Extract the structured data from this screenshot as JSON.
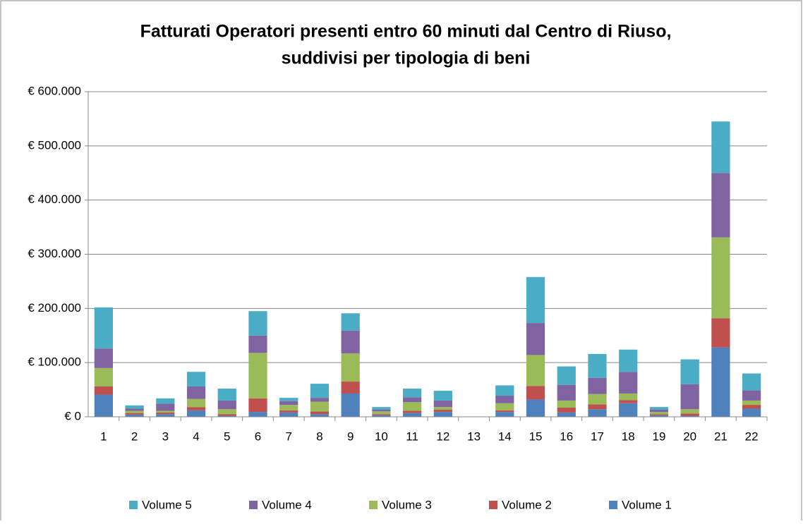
{
  "chart_data": {
    "type": "stacked_bar",
    "title": [
      "Fatturati Operatori presenti entro 60 minuti dal Centro di Riuso,",
      "suddivisi per tipologia di beni"
    ],
    "categories": [
      "1",
      "2",
      "3",
      "4",
      "5",
      "6",
      "7",
      "8",
      "9",
      "10",
      "11",
      "12",
      "13",
      "14",
      "15",
      "16",
      "17",
      "18",
      "19",
      "20",
      "21",
      "22"
    ],
    "series": [
      {
        "name": "Volume 1",
        "color": "#4f81bd",
        "values": [
          41000,
          4000,
          5000,
          12000,
          2000,
          9000,
          8000,
          5000,
          43000,
          3000,
          7000,
          9000,
          0,
          9000,
          32000,
          8000,
          14000,
          25000,
          3000,
          2000,
          128000,
          15000
        ]
      },
      {
        "name": "Volume 2",
        "color": "#c0504d",
        "values": [
          15000,
          3000,
          3000,
          6000,
          3000,
          25000,
          4000,
          5000,
          22000,
          2000,
          4000,
          4000,
          0,
          3000,
          25000,
          9000,
          9000,
          6000,
          2000,
          4000,
          54000,
          7000
        ]
      },
      {
        "name": "Volume 3",
        "color": "#9bbb59",
        "values": [
          34000,
          4000,
          3000,
          15000,
          9000,
          84000,
          10000,
          18000,
          52000,
          5000,
          16000,
          5000,
          0,
          13000,
          57000,
          13000,
          19000,
          12000,
          4000,
          8000,
          149000,
          8000
        ]
      },
      {
        "name": "Volume 4",
        "color": "#8064a2",
        "values": [
          36000,
          4000,
          13000,
          23000,
          16000,
          32000,
          7000,
          7000,
          42000,
          3000,
          9000,
          12000,
          0,
          14000,
          59000,
          29000,
          30000,
          40000,
          4000,
          46000,
          119000,
          19000
        ]
      },
      {
        "name": "Volume 5",
        "color": "#4bacc6",
        "values": [
          76000,
          6000,
          10000,
          27000,
          22000,
          45000,
          6000,
          26000,
          32000,
          5000,
          16000,
          18000,
          0,
          19000,
          85000,
          34000,
          44000,
          41000,
          5000,
          46000,
          95000,
          31000
        ]
      }
    ],
    "ylim": [
      0,
      600000
    ],
    "yticks": [
      {
        "value": 0,
        "label": "€ 0"
      },
      {
        "value": 100000,
        "label": "€ 100.000"
      },
      {
        "value": 200000,
        "label": "€ 200.000"
      },
      {
        "value": 300000,
        "label": "€ 300.000"
      },
      {
        "value": 400000,
        "label": "€ 400.000"
      },
      {
        "value": 500000,
        "label": "€ 500.000"
      },
      {
        "value": 600000,
        "label": "€ 600.000"
      }
    ],
    "grid": true,
    "legend": "bottom"
  }
}
